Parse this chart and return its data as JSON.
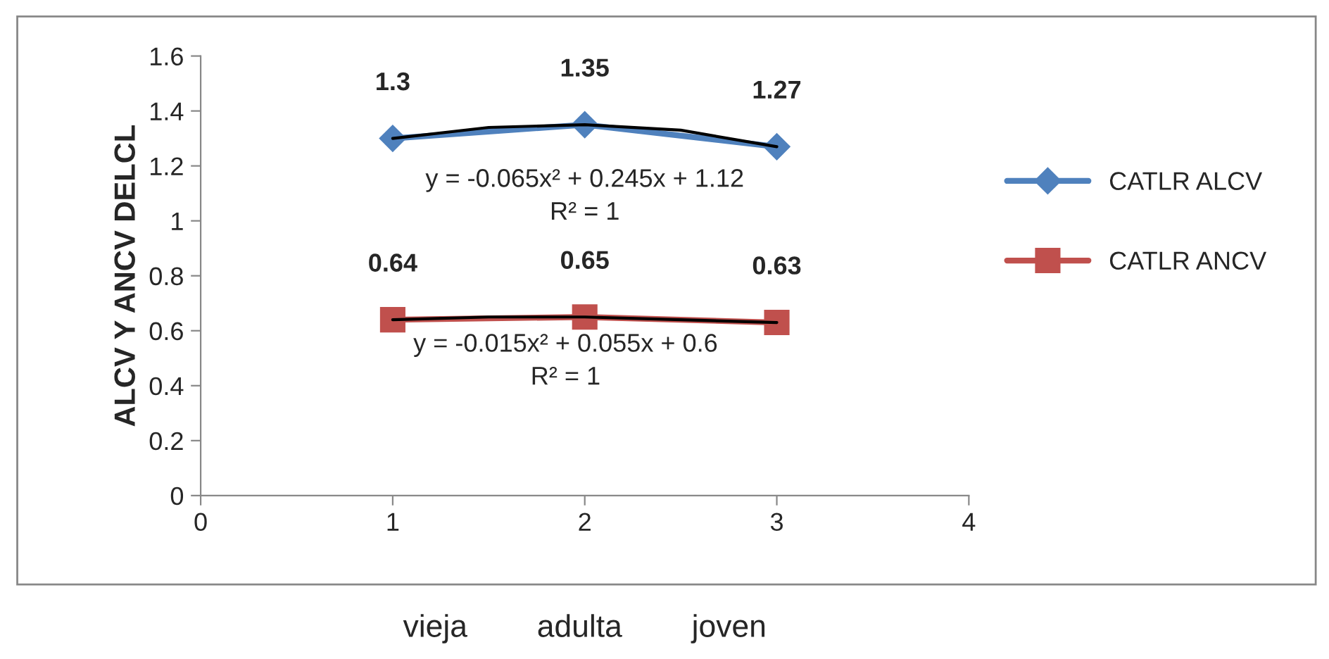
{
  "chart_data": {
    "type": "line",
    "ylabel": "ALCV Y ANCV DELCL",
    "xlabel": "vieja        adulta        joven",
    "x": [
      1,
      2,
      3
    ],
    "series": [
      {
        "name": "CATLR ALCV",
        "color": "#4f81bd",
        "marker": "diamond",
        "values": [
          1.3,
          1.35,
          1.27
        ],
        "value_labels": [
          "1.3",
          "1.35",
          "1.27"
        ]
      },
      {
        "name": "CATLR ANCV",
        "color": "#c0504d",
        "marker": "square",
        "values": [
          0.64,
          0.65,
          0.63
        ],
        "value_labels": [
          "0.64",
          "0.65",
          "0.63"
        ]
      },
      {
        "type": "line",
        "color": "#000000",
        "marker": "none",
        "x": [
          1,
          1.5,
          2,
          2.5,
          3
        ],
        "values": [
          1.3,
          1.34,
          1.35,
          1.33,
          1.27
        ]
      },
      {
        "type": "line",
        "color": "#000000",
        "marker": "none",
        "x": [
          1,
          1.5,
          2,
          2.5,
          3
        ],
        "values": [
          0.64,
          0.65,
          0.65,
          0.64,
          0.63
        ]
      }
    ],
    "annotations": [
      "y = -0.065x² + 0.245x + 1.12\nR² = 1",
      "y = -0.015x² + 0.055x + 0.6\nR² = 1"
    ],
    "xlim": [
      0,
      4
    ],
    "xticks": [
      0,
      1,
      2,
      3,
      4
    ],
    "ylim": [
      0,
      1.6
    ],
    "yticks": [
      0,
      0.2,
      0.4,
      0.6,
      0.8,
      1,
      1.2,
      1.4,
      1.6
    ],
    "legend": "right",
    "grid": false,
    "line_style": "solid"
  }
}
